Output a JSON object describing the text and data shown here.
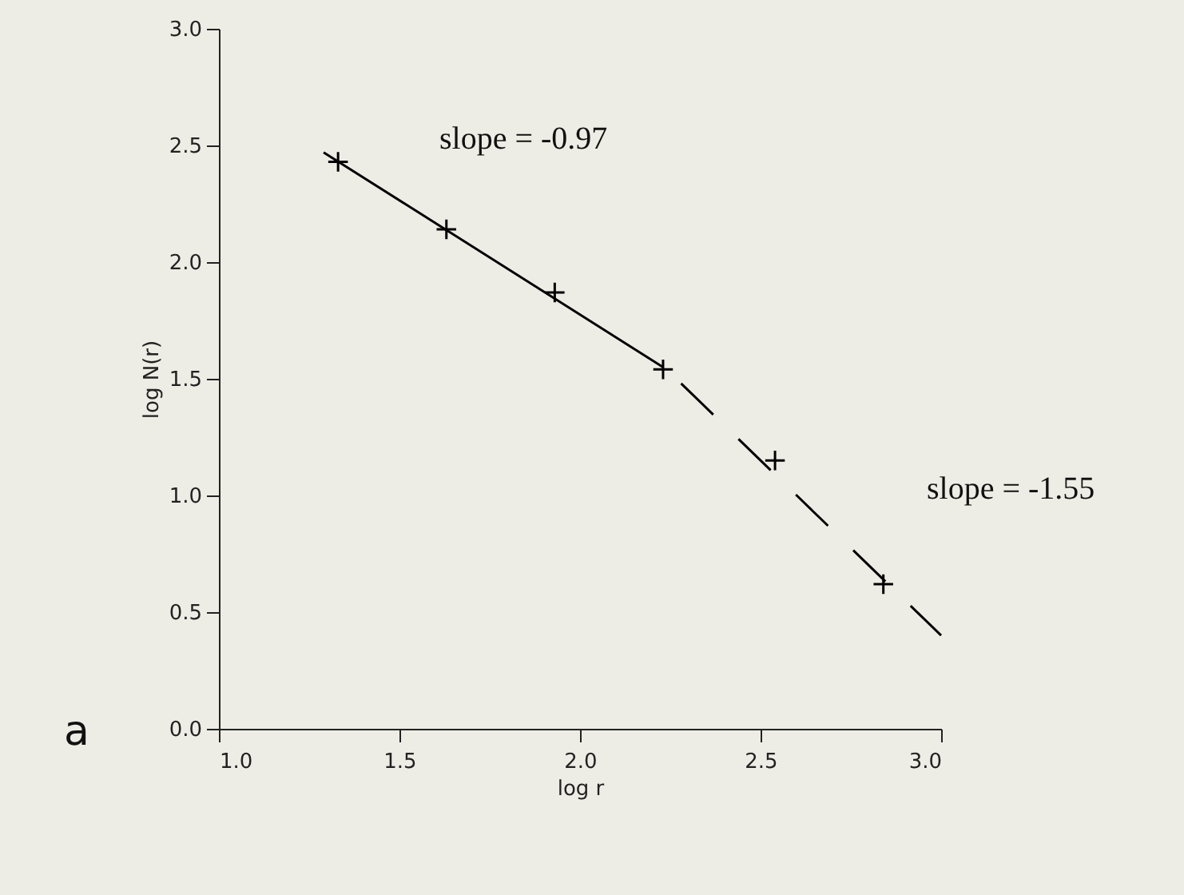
{
  "chart_data": {
    "type": "scatter",
    "xlabel": "log r",
    "ylabel": "log N(r)",
    "xlim": [
      1.0,
      3.0
    ],
    "ylim": [
      0.0,
      3.0
    ],
    "xticks": [
      {
        "value": 1.0,
        "label": "1.0"
      },
      {
        "value": 1.5,
        "label": "1.5"
      },
      {
        "value": 2.0,
        "label": "2.0"
      },
      {
        "value": 2.5,
        "label": "2.5"
      },
      {
        "value": 3.0,
        "label": "3.0"
      }
    ],
    "yticks": [
      {
        "value": 0.0,
        "label": "0.0"
      },
      {
        "value": 0.5,
        "label": "0.5"
      },
      {
        "value": 1.0,
        "label": "1.0"
      },
      {
        "value": 1.5,
        "label": "1.5"
      },
      {
        "value": 2.0,
        "label": "2.0"
      },
      {
        "value": 2.5,
        "label": "2.5"
      },
      {
        "value": 3.0,
        "label": "3.0"
      }
    ],
    "grid": false,
    "x": [
      1.33,
      1.63,
      1.93,
      2.23,
      2.54,
      2.84
    ],
    "series": [
      {
        "color": "#000000",
        "marker": "cross",
        "values": [
          2.43,
          2.14,
          1.87,
          1.54,
          1.15,
          0.62
        ]
      },
      {
        "type": "line",
        "color": "#000000",
        "line_style": "solid",
        "x": [
          1.29,
          2.23
        ],
        "values": [
          2.47,
          1.55
        ]
      },
      {
        "type": "line",
        "color": "#000000",
        "line_style": "dashed",
        "x": [
          2.28,
          3.0
        ],
        "values": [
          1.48,
          0.4
        ]
      }
    ],
    "annotations": [
      "slope = -0.97",
      "slope = -1.55",
      "a"
    ]
  }
}
